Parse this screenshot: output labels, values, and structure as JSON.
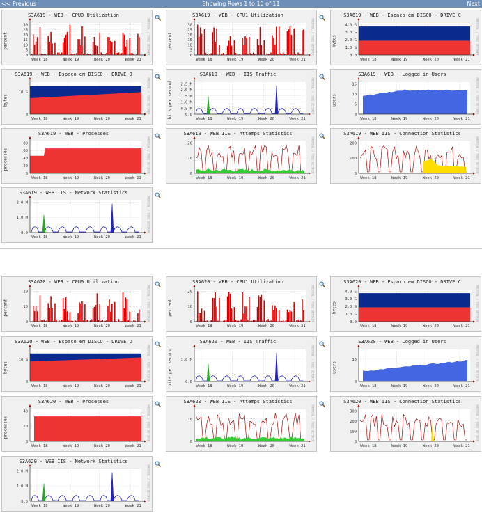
{
  "nav": {
    "prev": "<< Previous",
    "status": "Showing Rows 1 to 10 of 11",
    "next": "Next"
  },
  "watermark": "RRDTOOL / TOBI OETIKER",
  "colors": {
    "cpu": "#dd0000",
    "disk_used": "#ee3333",
    "disk_free": "#0a2a8e",
    "traffic": "#2222cc",
    "traffic_alt": "#22aa22",
    "users": "#4466e0",
    "processes": "#ee3333",
    "line_red": "#aa1111",
    "fill_green": "#33cc33",
    "fill_yellow": "#ffdd00"
  },
  "hosts": [
    {
      "graphs": [
        {
          "title": "S3A619 - WEB - CPU0 Utilization",
          "ylabel": "percent",
          "kind": "cpu",
          "yticks": [
            "0",
            "5",
            "10",
            "15",
            "20",
            "25",
            "30"
          ],
          "ymax": 30,
          "xticks": [
            "Week 18",
            "Week 19",
            "Week 20",
            "Week 21"
          ]
        },
        {
          "title": "S3A619 - WEB - CPU1 Utilization",
          "ylabel": "percent",
          "kind": "cpu",
          "yticks": [
            "0",
            "5",
            "10",
            "15",
            "20",
            "25",
            "30"
          ],
          "ymax": 30,
          "xticks": [
            "Week 18",
            "Week 19",
            "Week 20",
            "Week 21"
          ]
        },
        {
          "title": "S3A619 - WEB - Espaco em DISCO - DRIVE C",
          "ylabel": "bytes",
          "kind": "disk",
          "yticks": [
            "0.0",
            "1.0 G",
            "2.0 G",
            "3.0 G",
            "4.0 G"
          ],
          "ymax": 4.5,
          "used": 2.0,
          "free_top": 4.0,
          "xticks": [
            "Week 18",
            "Week 19",
            "Week 20",
            "Week 21"
          ]
        },
        {
          "title": "S3A619 - WEB - Espaco em DISCO - DRIVE D",
          "ylabel": "bytes",
          "kind": "diskd",
          "yticks": [
            "0",
            "10 G"
          ],
          "ymax": 16,
          "used_start": 8,
          "used_end": 11,
          "free_top": 14,
          "xticks": [
            "Week 18",
            "Week 19",
            "Week 20",
            "Week 21"
          ]
        },
        {
          "title": "S3A619 - WEB - IIS Traffic",
          "ylabel": "bits per second",
          "kind": "traffic",
          "yticks": [
            "0.0",
            "0.5 M",
            "1.0 M",
            "1.5 M",
            "2.0 M",
            "2.5 M"
          ],
          "ymax": 2.6,
          "xticks": [
            "Week 18",
            "Week 19",
            "Week 20",
            "Week 21"
          ]
        },
        {
          "title": "S3A619 - WEB - Logged in Users",
          "ylabel": "users",
          "kind": "users",
          "yticks": [
            "0",
            "5",
            "10",
            "15"
          ],
          "ymax": 16,
          "xticks": [
            "Week 18",
            "Week 19",
            "Week 20",
            "Week 21"
          ]
        },
        {
          "title": "S3A619 - WEB - Processes",
          "ylabel": "processes",
          "kind": "procs",
          "yticks": [
            "0",
            "20",
            "40",
            "60",
            "80"
          ],
          "ymax": 85,
          "xticks": [
            "Week 18",
            "Week 19",
            "Week 20",
            "Week 21"
          ]
        },
        {
          "title": "S3A619 - WEB IIS - Attemps Statistics",
          "ylabel": "",
          "kind": "attempts",
          "yticks": [
            "0",
            "10",
            "20"
          ],
          "ymax": 21,
          "xticks": [
            "Week 18",
            "Week 19",
            "Week 20",
            "Week 21"
          ]
        },
        {
          "title": "S3A619 - WEB IIS - Connection Statistics",
          "ylabel": "",
          "kind": "conn",
          "yticks": [
            "0",
            "100",
            "200"
          ],
          "ymax": 210,
          "xticks": [
            "Week 18",
            "Week 19",
            "Week 20",
            "Week 21"
          ]
        },
        {
          "title": "S3A619 - WEB IIS - Network Statistics",
          "ylabel": "",
          "kind": "traffic",
          "yticks": [
            "0.0",
            "1.0 M",
            "2.0 M"
          ],
          "ymax": 2.6,
          "xticks": [
            "Week 18",
            "Week 19",
            "Week 20",
            "Week 21"
          ]
        }
      ]
    },
    {
      "graphs": [
        {
          "title": "S3A620 - WEB - CPU0 Utilization",
          "ylabel": "percent",
          "kind": "cpu",
          "yticks": [
            "0",
            "10",
            "20"
          ],
          "ymax": 22,
          "xticks": [
            "Week 18",
            "Week 19",
            "Week 20",
            "Week 21"
          ]
        },
        {
          "title": "S3A620 - WEB - CPU1 Utilization",
          "ylabel": "percent",
          "kind": "cpu",
          "yticks": [
            "0",
            "10",
            "20"
          ],
          "ymax": 22,
          "xticks": [
            "Week 18",
            "Week 19",
            "Week 20",
            "Week 21"
          ]
        },
        {
          "title": "S3A620 - WEB - Espaco em DISCO - DRIVE C",
          "ylabel": "bytes",
          "kind": "disk",
          "yticks": [
            "0.0",
            "1.0 G",
            "2.0 G",
            "3.0 G",
            "4.0 G"
          ],
          "ymax": 4.5,
          "used": 2.0,
          "free_top": 4.0,
          "xticks": [
            "Week 18",
            "Week 19",
            "Week 20",
            "Week 21"
          ]
        },
        {
          "title": "S3A620 - WEB - Espaco em DISCO - DRIVE D",
          "ylabel": "bytes",
          "kind": "diskd",
          "yticks": [
            "0",
            "10 G"
          ],
          "ymax": 16,
          "used_start": 10,
          "used_end": 12,
          "free_top": 14,
          "xticks": [
            "Week 18",
            "Week 19",
            "Week 20",
            "Week 21"
          ]
        },
        {
          "title": "S3A620 - WEB - IIS Traffic",
          "ylabel": "bits per second",
          "kind": "traffic",
          "yticks": [
            "0.0",
            "1.0 M"
          ],
          "ymax": 2.0,
          "xticks": [
            "Week 18",
            "Week 19",
            "Week 20",
            "Week 21"
          ]
        },
        {
          "title": "S3A620 - WEB - Logged in Users",
          "ylabel": "users",
          "kind": "users2",
          "yticks": [
            "0",
            "10"
          ],
          "ymax": 16,
          "xticks": [
            "Week 18",
            "Week 19",
            "Week 20",
            "Week 21"
          ]
        },
        {
          "title": "S3A620 - WEB - Processes",
          "ylabel": "processes",
          "kind": "procs2",
          "yticks": [
            "0",
            "20",
            "40"
          ],
          "ymax": 52,
          "xticks": [
            "Week 18",
            "Week 19",
            "Week 20",
            "Week 21"
          ]
        },
        {
          "title": "S3A620 - WEB IIS - Attemps Statistics",
          "ylabel": "",
          "kind": "attempts",
          "yticks": [
            "0",
            "10"
          ],
          "ymax": 16,
          "xticks": [
            "Week 18",
            "Week 19",
            "Week 20",
            "Week 21"
          ]
        },
        {
          "title": "S3A620 - WEB IIS - Connection Statistics",
          "ylabel": "",
          "kind": "conn2",
          "yticks": [
            "0",
            "100",
            "200",
            "300"
          ],
          "ymax": 330,
          "xticks": [
            "Week 18",
            "Week 19",
            "Week 20",
            "Week 21"
          ]
        },
        {
          "title": "S3A620 - WEB IIS - Network Statistics",
          "ylabel": "",
          "kind": "traffic",
          "yticks": [
            "0.0",
            "1.0 M",
            "2.0 M"
          ],
          "ymax": 2.3,
          "xticks": [
            "Week 18",
            "Week 19",
            "Week 20",
            "Week 21"
          ]
        }
      ]
    }
  ]
}
